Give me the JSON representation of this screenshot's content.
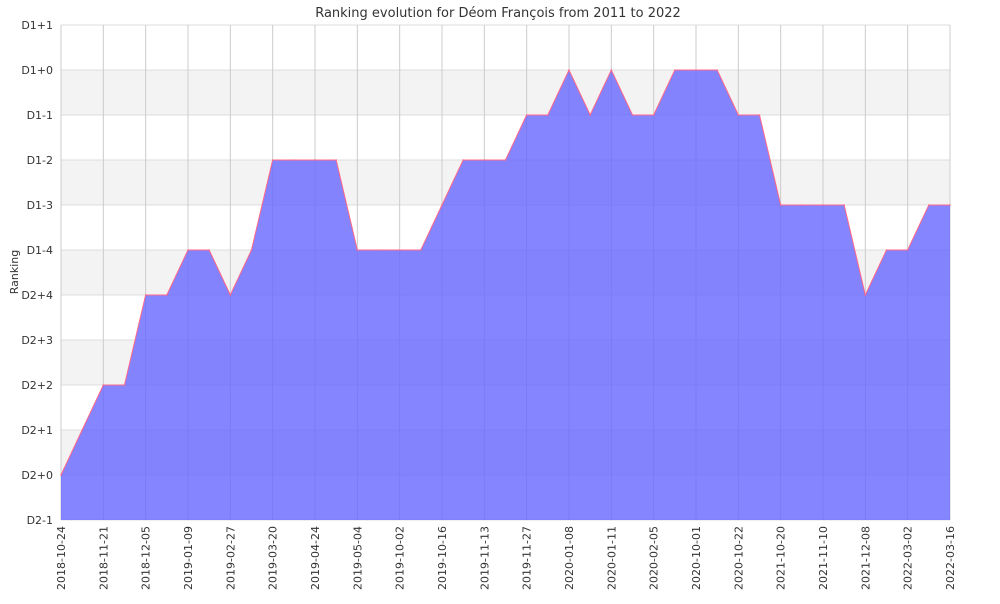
{
  "chart_data": {
    "type": "area",
    "title": "Ranking evolution for Déom François from 2011 to 2022",
    "xlabel": "",
    "ylabel": "Ranking",
    "y_ticks": [
      "D2-1",
      "D2+0",
      "D2+1",
      "D2+2",
      "D2+3",
      "D2+4",
      "D1-4",
      "D1-3",
      "D1-2",
      "D1-1",
      "D1+0",
      "D1+1"
    ],
    "x_labels": [
      "2018-10-24",
      "2018-11-21",
      "2018-12-05",
      "2019-01-09",
      "2019-02-27",
      "2019-03-20",
      "2019-04-24",
      "2019-05-04",
      "2019-10-02",
      "2019-10-16",
      "2019-11-13",
      "2019-11-27",
      "2020-01-08",
      "2020-01-11",
      "2020-02-05",
      "2020-10-01",
      "2020-10-22",
      "2021-10-20",
      "2021-11-10",
      "2021-12-08",
      "2022-03-02",
      "2022-03-16"
    ],
    "x_label_every": 2,
    "series": [
      {
        "name": "Ranking",
        "values": [
          "D2+0",
          "D2+1",
          "D2+2",
          "D2+2",
          "D2+4",
          "D2+4",
          "D1-4",
          "D1-4",
          "D2+4",
          "D1-4",
          "D1-2",
          "D1-2",
          "D1-2",
          "D1-2",
          "D1-4",
          "D1-4",
          "D1-4",
          "D1-4",
          "D1-3",
          "D1-2",
          "D1-2",
          "D1-2",
          "D1-1",
          "D1-1",
          "D1+0",
          "D1-1",
          "D1+0",
          "D1-1",
          "D1-1",
          "D1+0",
          "D1+0",
          "D1+0",
          "D1-1",
          "D1-1",
          "D1-3",
          "D1-3",
          "D1-3",
          "D1-3",
          "D2+4",
          "D1-4",
          "D1-4",
          "D1-3",
          "D1-3"
        ]
      }
    ],
    "grid": true,
    "colors": {
      "fill": "#6666ff",
      "line": "#ff6688",
      "band": "#f3f3f3",
      "grid": "#cccccc"
    }
  }
}
